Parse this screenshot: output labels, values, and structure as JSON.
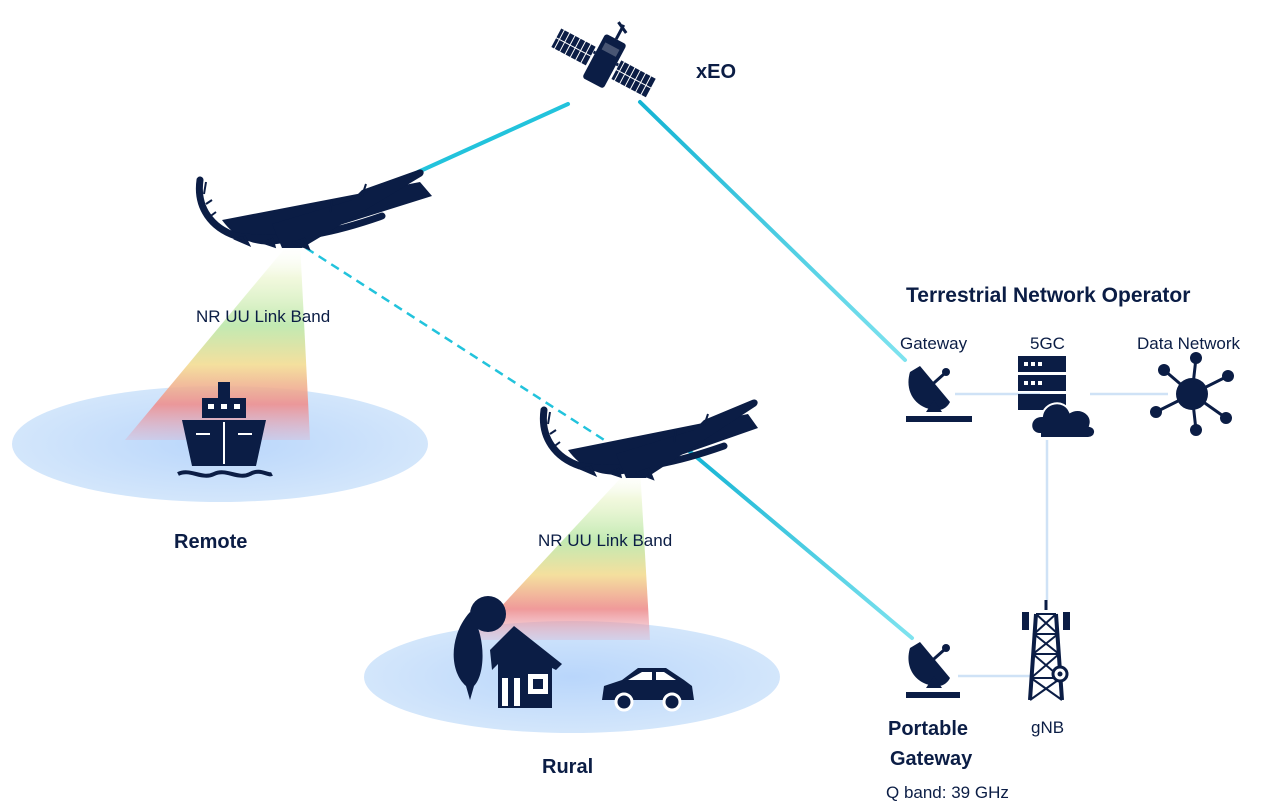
{
  "labels": {
    "satellite": "xEO",
    "beam_remote": "NR UU Link Band",
    "beam_rural": "NR UU Link Band",
    "area_remote": "Remote",
    "area_rural": "Rural",
    "operator_title": "Terrestrial Network Operator",
    "gateway": "Gateway",
    "core": "5GC",
    "data_network": "Data Network",
    "portable_gateway_line1": "Portable",
    "portable_gateway_line2": "Gateway",
    "frequency": "Q band: 39 GHz",
    "gnb": "gNB"
  },
  "icons": {
    "satellite": "satellite-icon",
    "haps_upper": "haps-aircraft-icon",
    "haps_lower": "haps-aircraft-icon",
    "ship": "ship-icon",
    "house": "house-icon",
    "tree": "tree-icon",
    "car": "car-icon",
    "gateway": "satellite-dish-icon",
    "portable_gateway": "satellite-dish-icon",
    "core": "server-cloud-icon",
    "data_network": "network-hub-icon",
    "gnb": "cell-tower-icon"
  },
  "colors": {
    "navy": "#0b1d45",
    "link_cyan": "#22c3dc",
    "coverage_blue": "#c6defa",
    "backhaul_line": "#cfe2f6"
  }
}
